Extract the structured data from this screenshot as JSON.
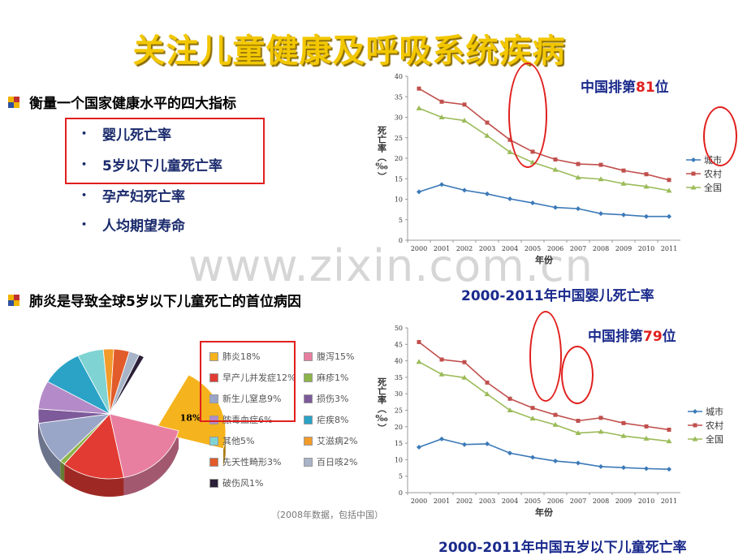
{
  "title": "关注儿童健康及呼吸系统疾病",
  "section1": {
    "heading": "衡量一个国家健康水平的四大指标",
    "items": [
      "婴儿死亡率",
      "5岁以下儿童死亡率",
      "孕产妇死亡率",
      "人均期望寿命"
    ]
  },
  "section2": {
    "heading": "肺炎是导致全球5岁以下儿童死亡的首位病因"
  },
  "watermark": "www.zixin.com.cn",
  "rank1": {
    "prefix": "中国排第",
    "num": "81",
    "suffix": "位"
  },
  "rank2": {
    "prefix": "中国排第",
    "num": "79",
    "suffix": "位"
  },
  "caption1": "2000-2011年中国婴儿死亡率",
  "caption2": "2000-2011年中国五岁以下儿童死亡率",
  "pie_note": "（2008年数据，包括中国）",
  "pie_center_label": "18%",
  "colors": {
    "city": "#3b79b8",
    "rural": "#c0504d",
    "national": "#9bbb59",
    "red_marker": "#e0201e",
    "title": "#f2c700"
  },
  "chart_data": [
    {
      "type": "line",
      "title": "2000-2011年中国婴儿死亡率",
      "xlabel": "年份",
      "ylabel": "死亡率（‰）",
      "ylim": [
        0,
        40
      ],
      "yticks": [
        0,
        5,
        10,
        15,
        20,
        25,
        30,
        35,
        40
      ],
      "x": [
        "2000",
        "2001",
        "2002",
        "2003",
        "2004",
        "2005",
        "2006",
        "2007",
        "2008",
        "2009",
        "2010",
        "2011"
      ],
      "series": [
        {
          "name": "城市",
          "values": [
            11.8,
            13.6,
            12.2,
            11.3,
            10.1,
            9.1,
            8.0,
            7.7,
            6.5,
            6.2,
            5.8,
            5.8
          ]
        },
        {
          "name": "农村",
          "values": [
            37.0,
            33.8,
            33.1,
            28.7,
            24.5,
            21.6,
            19.7,
            18.6,
            18.4,
            17.0,
            16.1,
            14.7
          ]
        },
        {
          "name": "全国",
          "values": [
            32.2,
            30.0,
            29.2,
            25.5,
            21.5,
            19.0,
            17.2,
            15.3,
            14.9,
            13.8,
            13.1,
            12.1
          ]
        }
      ]
    },
    {
      "type": "line",
      "title": "2000-2011年中国五岁以下儿童死亡率",
      "xlabel": "年份",
      "ylabel": "死亡率（‰）",
      "ylim": [
        0,
        50
      ],
      "yticks": [
        0,
        5,
        10,
        15,
        20,
        25,
        30,
        35,
        40,
        45,
        50
      ],
      "x": [
        "2000",
        "2001",
        "2002",
        "2003",
        "2004",
        "2005",
        "2006",
        "2007",
        "2008",
        "2009",
        "2010",
        "2011"
      ],
      "series": [
        {
          "name": "城市",
          "values": [
            13.8,
            16.3,
            14.6,
            14.8,
            12.0,
            10.7,
            9.6,
            9.0,
            7.9,
            7.6,
            7.3,
            7.1
          ]
        },
        {
          "name": "农村",
          "values": [
            45.7,
            40.4,
            39.6,
            33.4,
            28.5,
            25.7,
            23.6,
            21.8,
            22.7,
            21.1,
            20.1,
            19.1
          ]
        },
        {
          "name": "全国",
          "values": [
            39.7,
            35.9,
            34.9,
            29.9,
            25.0,
            22.5,
            20.6,
            18.1,
            18.5,
            17.2,
            16.4,
            15.6
          ]
        }
      ]
    },
    {
      "type": "pie",
      "title": "",
      "legend": [
        {
          "label": "肺炎18%",
          "value": 18,
          "color": "#f5b31d"
        },
        {
          "label": "腹泻15%",
          "value": 15,
          "color": "#e87fa0"
        },
        {
          "label": "早产儿并发症12%",
          "value": 12,
          "color": "#e23b33"
        },
        {
          "label": "麻疹1%",
          "value": 1,
          "color": "#8db44a"
        },
        {
          "label": "新生儿窒息9%",
          "value": 9,
          "color": "#9aa6c8"
        },
        {
          "label": "损伤3%",
          "value": 3,
          "color": "#7d5a9a"
        },
        {
          "label": "脓毒血症6%",
          "value": 6,
          "color": "#b48bc8"
        },
        {
          "label": "疟疾8%",
          "value": 8,
          "color": "#2aa3c7"
        },
        {
          "label": "其他5%",
          "value": 5,
          "color": "#7fd3d3"
        },
        {
          "label": "艾滋病2%",
          "value": 2,
          "color": "#f39b2a"
        },
        {
          "label": "先天性畸形3%",
          "value": 3,
          "color": "#e25b2a"
        },
        {
          "label": "百日咳2%",
          "value": 2,
          "color": "#a8b4c8"
        },
        {
          "label": "破伤风1%",
          "value": 1,
          "color": "#2b2038"
        }
      ]
    }
  ]
}
